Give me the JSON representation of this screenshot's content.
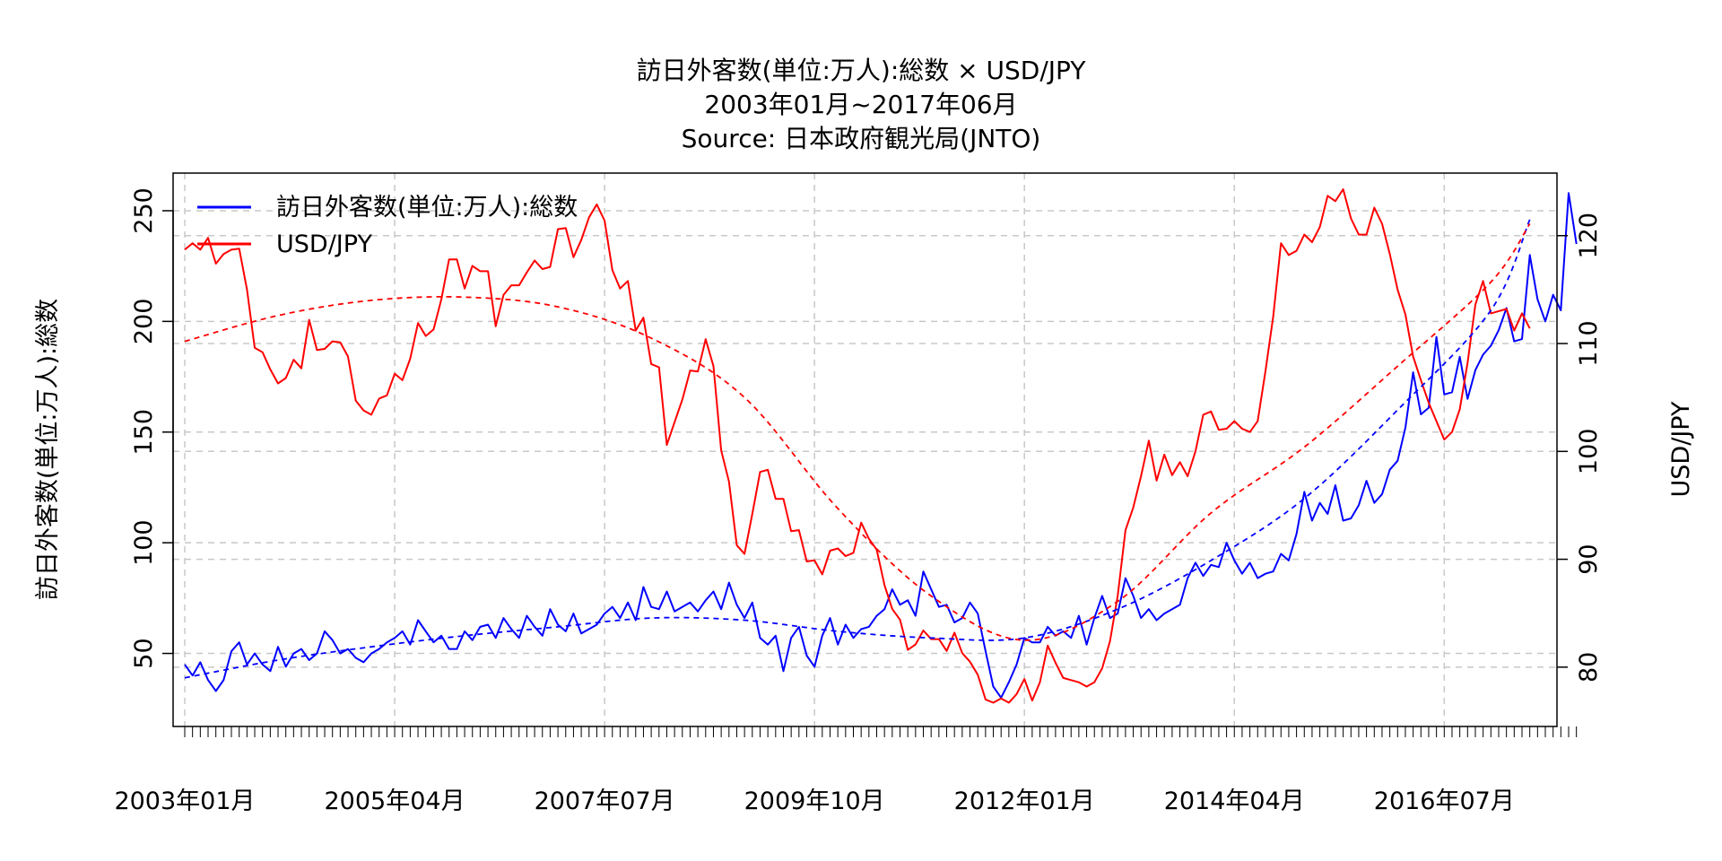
{
  "chart_data": {
    "type": "line",
    "title": "訪日外客数(単位:万人):総数 × USD/JPY",
    "subtitle_1": "2003年01月~2017年06月",
    "subtitle_2": "Source: 日本政府観光局(JNTO)",
    "ylabel_left": "訪日外客数(単位:万人):総数",
    "ylabel_right": "USD/JPY",
    "x_tick_labels": [
      "2003年01月",
      "2005年04月",
      "2007年07月",
      "2009年10月",
      "2012年01月",
      "2014年04月",
      "2016年07月"
    ],
    "y_left_ticks": [
      50,
      100,
      150,
      200,
      250
    ],
    "y_right_ticks": [
      80,
      90,
      100,
      110,
      120
    ],
    "y_left_range": [
      17,
      267
    ],
    "y_right_range": [
      74.5,
      125.8
    ],
    "x_range_months": [
      -1.5,
      176.5
    ],
    "grid": true,
    "legend_position": "top-left",
    "colors": {
      "visitors": "#0000ff",
      "usdjpy": "#ff0000",
      "grid": "#c8c8c8"
    },
    "series": [
      {
        "name": "訪日外客数(単位:万人):総数",
        "axis": "left",
        "color": "#0000ff",
        "start": "2003-01",
        "values": [
          45,
          40,
          46,
          38,
          33,
          38,
          51,
          55,
          45,
          50,
          45,
          42,
          53,
          44,
          50,
          52,
          47,
          50,
          60,
          56,
          50,
          52,
          48,
          46,
          50,
          52,
          55,
          57,
          60,
          54,
          65,
          60,
          55,
          58,
          52,
          52,
          60,
          56,
          62,
          63,
          57,
          66,
          61,
          57,
          67,
          62,
          58,
          70,
          63,
          60,
          68,
          59,
          61,
          63,
          68,
          71,
          66,
          73,
          65,
          80,
          71,
          70,
          78,
          69,
          71,
          73,
          69,
          74,
          78,
          70,
          82,
          72,
          66,
          73,
          57,
          54,
          58,
          42,
          57,
          62,
          49,
          44,
          58,
          66,
          54,
          63,
          57,
          61,
          62,
          67,
          70,
          79,
          72,
          74,
          67,
          87,
          79,
          71,
          72,
          64,
          66,
          73,
          68,
          51,
          35,
          30,
          37,
          45,
          57,
          55,
          55,
          62,
          58,
          60,
          57,
          67,
          54,
          66,
          76,
          66,
          68,
          84,
          76,
          66,
          70,
          65,
          68,
          70,
          72,
          84,
          91,
          85,
          90,
          89,
          100,
          92,
          86,
          91,
          84,
          86,
          87,
          95,
          92,
          104,
          123,
          110,
          118,
          113,
          126,
          110,
          111,
          117,
          128,
          118,
          122,
          133,
          137,
          152,
          177,
          158,
          161,
          193,
          167,
          168,
          184,
          165,
          178,
          185,
          189,
          196,
          206,
          191,
          192,
          230,
          210,
          200,
          212,
          205,
          258,
          235
        ]
      },
      {
        "name": "USD/JPY",
        "axis": "right",
        "color": "#ff0000",
        "start": "2003-01",
        "values": [
          118.7,
          119.3,
          118.7,
          119.8,
          117.4,
          118.3,
          118.7,
          118.8,
          115.0,
          109.6,
          109.2,
          107.6,
          106.3,
          106.8,
          108.5,
          107.7,
          112.2,
          109.4,
          109.5,
          110.2,
          110.1,
          108.8,
          104.7,
          103.8,
          103.4,
          104.9,
          105.2,
          107.2,
          106.6,
          108.6,
          111.9,
          110.7,
          111.3,
          114.1,
          117.8,
          117.8,
          115.1,
          117.2,
          116.7,
          116.7,
          111.6,
          114.5,
          115.4,
          115.4,
          116.6,
          117.7,
          116.9,
          117.1,
          120.6,
          120.7,
          118.0,
          119.6,
          121.7,
          122.9,
          121.4,
          116.8,
          115.1,
          115.8,
          111.2,
          112.4,
          108.1,
          107.8,
          100.6,
          102.7,
          104.8,
          107.5,
          107.4,
          110.4,
          107.9,
          100.1,
          97.2,
          91.3,
          90.5,
          94.2,
          98.1,
          98.3,
          95.6,
          95.6,
          92.6,
          92.7,
          89.8,
          89.9,
          88.6,
          90.8,
          91.0,
          90.3,
          90.6,
          93.4,
          91.9,
          90.9,
          87.6,
          85.4,
          84.4,
          81.6,
          82.1,
          83.4,
          82.6,
          82.6,
          81.5,
          83.2,
          81.3,
          80.5,
          79.3,
          77.0,
          76.7,
          77.1,
          76.7,
          77.5,
          78.9,
          76.9,
          78.6,
          82.0,
          80.4,
          79.0,
          78.8,
          78.6,
          78.2,
          78.6,
          79.9,
          82.4,
          86.6,
          92.7,
          94.8,
          97.7,
          101.0,
          97.3,
          99.7,
          97.8,
          99.0,
          97.7,
          100.0,
          103.4,
          103.7,
          102.0,
          102.1,
          102.8,
          102.1,
          101.8,
          102.8,
          107.4,
          112.5,
          119.3,
          118.2,
          118.6,
          120.1,
          119.4,
          120.8,
          123.7,
          123.2,
          124.3,
          121.6,
          120.1,
          120.1,
          122.6,
          121.1,
          118.3,
          115.0,
          112.7,
          108.8,
          106.6,
          104.5,
          102.8,
          101.1,
          101.8,
          103.9,
          108.2,
          113.6,
          115.8,
          112.8,
          113.0,
          113.2,
          111.2,
          112.8,
          111.4
        ]
      },
      {
        "name": "",
        "role": "visitors-trend",
        "axis": "left",
        "color": "#0000ff",
        "dashed": true,
        "x": [
          "2003-01",
          "2004-01",
          "2005-01",
          "2006-01",
          "2007-01",
          "2008-01",
          "2009-01",
          "2010-01",
          "2011-01",
          "2012-01",
          "2013-01",
          "2014-01",
          "2015-01",
          "2016-01",
          "2017-01",
          "2017-06"
        ],
        "values": [
          39,
          47,
          53,
          58,
          62,
          66,
          65,
          60,
          57,
          57,
          70,
          92,
          120,
          160,
          205,
          246
        ]
      },
      {
        "name": "",
        "role": "usdjpy-trend",
        "axis": "right",
        "color": "#ff0000",
        "dashed": true,
        "x": [
          "2003-01",
          "2004-01",
          "2005-01",
          "2006-01",
          "2007-01",
          "2008-01",
          "2009-01",
          "2010-01",
          "2011-01",
          "2012-01",
          "2013-01",
          "2014-01",
          "2015-01",
          "2016-01",
          "2017-01",
          "2017-06"
        ],
        "values": [
          110.2,
          112.6,
          114.0,
          114.3,
          113.4,
          110.5,
          105.0,
          94.7,
          86.6,
          82.5,
          86.1,
          94.3,
          100.4,
          107.9,
          115.7,
          121.1
        ]
      }
    ]
  }
}
